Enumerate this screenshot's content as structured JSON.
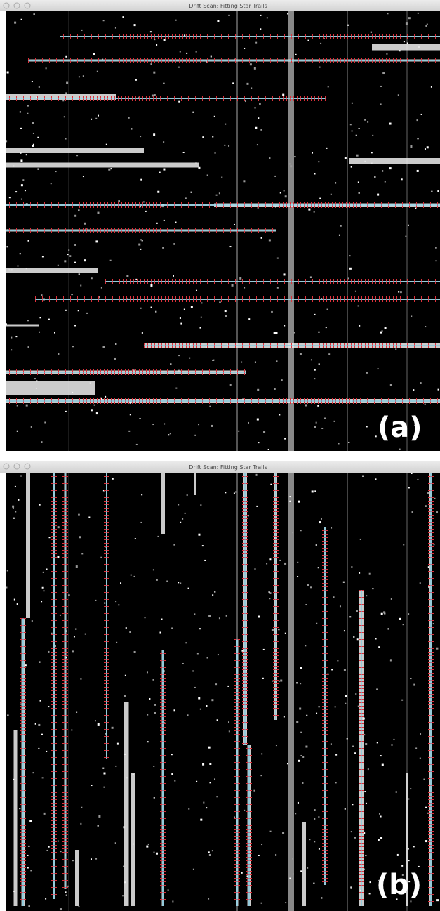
{
  "windows": [
    {
      "title": "Drift Scan: Fitting Star Trails",
      "label": "(a)"
    },
    {
      "title": "Drift Scan: Fitting Star Trails",
      "label": "(b)"
    }
  ]
}
